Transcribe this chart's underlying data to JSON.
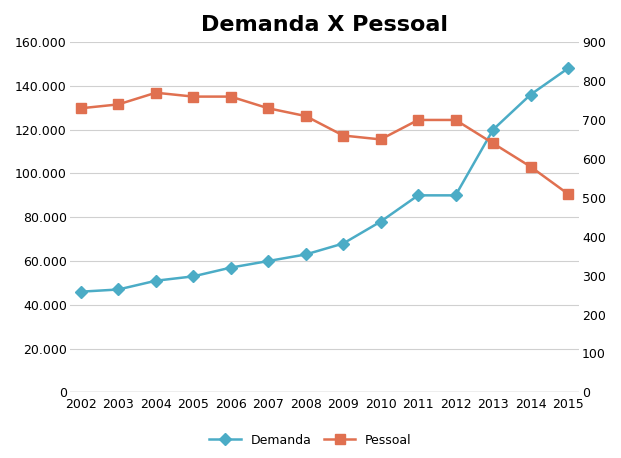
{
  "title": "Demanda X Pessoal",
  "years": [
    2002,
    2003,
    2004,
    2005,
    2006,
    2007,
    2008,
    2009,
    2010,
    2011,
    2012,
    2013,
    2014,
    2015
  ],
  "demanda": [
    46000,
    47000,
    51000,
    53000,
    57000,
    60000,
    63000,
    68000,
    78000,
    90000,
    90000,
    120000,
    136000,
    148000
  ],
  "pessoal": [
    730,
    740,
    770,
    760,
    760,
    730,
    710,
    660,
    650,
    700,
    700,
    640,
    580,
    510
  ],
  "demanda_color": "#4BACC6",
  "pessoal_color": "#E07050",
  "demanda_marker": "D",
  "pessoal_marker": "s",
  "ylim_left": [
    0,
    160000
  ],
  "ylim_right": [
    0,
    900
  ],
  "yticks_left": [
    0,
    20000,
    40000,
    60000,
    80000,
    100000,
    120000,
    140000,
    160000
  ],
  "yticks_right": [
    0,
    100,
    200,
    300,
    400,
    500,
    600,
    700,
    800,
    900
  ],
  "legend_labels": [
    "Demanda",
    "Pessoal"
  ],
  "background_color": "#ffffff",
  "title_fontsize": 16,
  "tick_fontsize": 9,
  "grid_color": "#d0d0d0"
}
